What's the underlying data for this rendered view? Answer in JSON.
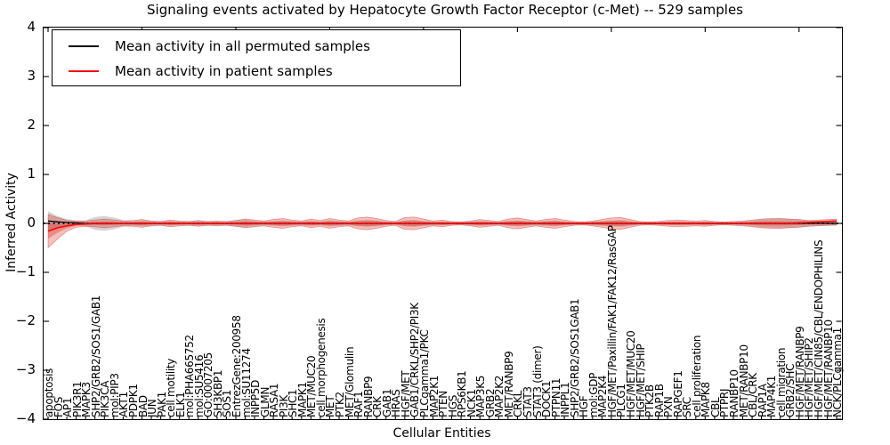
{
  "chart_data": {
    "type": "line",
    "title": "Signaling events activated by Hepatocyte Growth Factor Receptor (c-Met) -- 529 samples",
    "xlabel": "Cellular Entities",
    "ylabel": "Inferred Activity",
    "ylim": [
      -4,
      4
    ],
    "yticks": [
      4,
      3,
      2,
      1,
      0,
      -1,
      -2,
      -3,
      -4
    ],
    "grid": false,
    "legend_position": "upper left",
    "legend": [
      {
        "label": "Mean activity in all permuted samples",
        "color": "#000000"
      },
      {
        "label": "Mean activity in patient samples",
        "color": "#ee1111"
      }
    ],
    "band_color": "#dd2c22",
    "grey_band_color": "#aaaaaa",
    "categories": [
      "apoptosis",
      "FOS",
      "AP1",
      "PIK3R1",
      "MAPK3",
      "SHP2/GRB2/SOS1/GAB1",
      "PIK3CA",
      "mol:PIP3",
      "AKT1",
      "PDPK1",
      "BAD",
      "JUN",
      "PAK1",
      "cell motility",
      "ELK1",
      "mol:PHA665752",
      "mol:SU5416",
      "GO:0007205",
      "SH3KBP1",
      "SOS1",
      "EntrezGene:200958",
      "mol:SU11274",
      "INPP5D",
      "GLMN",
      "RASA1",
      "PI3K",
      "SHC1",
      "MAPK1",
      "MET/MUC20",
      "cell morphogenesis",
      "MET",
      "PTK2",
      "MET/Glomulin",
      "RAF1",
      "RANBP9",
      "CRK",
      "GAB1",
      "HRAS",
      "HGF/MET",
      "GAB1/CRKL/SHP2/PI3K",
      "PLCgamma1/PKC",
      "MAP2K1",
      "PTEN",
      "HGS",
      "RPS6KB1",
      "NCK1",
      "MAP3K5",
      "GRB2",
      "MAP2K2",
      "MET/RANBP9",
      "CRKL",
      "STAT3",
      "STAT3 (dimer)",
      "DOCK1",
      "PTPN11",
      "INPPL1",
      "SHP2/GRB2/SOS1GAB1",
      "HGF",
      "mol:GDP",
      "MAP2K4",
      "HGF/MET/Paxillin/FAK1/FAK12/RasGAP",
      "PLCG1",
      "HGF/MET/MUC20",
      "HGF/MET/SHIP",
      "PTK2B",
      "RAP1B",
      "PXN",
      "RAPGEF1",
      "SRC",
      "cell proliferation",
      "MAPK8",
      "CBL",
      "PTPRJ",
      "RANBP10",
      "MET/RANBP10",
      "CBL/CRK",
      "RAP1A",
      "MAP4K1",
      "cell migration",
      "GRB2/SHC",
      "HGF/MET/RANBP9",
      "HGF/MET/SHIP2",
      "HGF/MET/CIN85/CBL/ENDOPHILINS",
      "HGF/MET/RANBP10",
      "NCK/PLCgamma1"
    ],
    "series": [
      {
        "name": "Mean activity in all permuted samples",
        "values": [
          0.05,
          0.03,
          0.02,
          0.01,
          0,
          0,
          0,
          0,
          0,
          0,
          0,
          0,
          0,
          0,
          0,
          0,
          0,
          0,
          0,
          0,
          0,
          0,
          0,
          0,
          0,
          0,
          0,
          0,
          0,
          0,
          0,
          0,
          0,
          0,
          0,
          0,
          0,
          0,
          0,
          0,
          0,
          0,
          0,
          0,
          0,
          0,
          0,
          0,
          0,
          0,
          0,
          0,
          0,
          0,
          0,
          0,
          0,
          0,
          0,
          0,
          0,
          0,
          0,
          0,
          0,
          0,
          0,
          0,
          0,
          0,
          0,
          0,
          0,
          0,
          0,
          0,
          0,
          0,
          0,
          0,
          0,
          0,
          0,
          0,
          0
        ],
        "band_halfwidth": [
          0.2,
          0.12,
          0.07,
          0.05,
          0.06,
          0.13,
          0.15,
          0.12,
          0.07,
          0.05,
          0.06,
          0.05,
          0.04,
          0.05,
          0.04,
          0.04,
          0.05,
          0.04,
          0.04,
          0.04,
          0.07,
          0.08,
          0.06,
          0.04,
          0.05,
          0.06,
          0.05,
          0.04,
          0.05,
          0.04,
          0.06,
          0.05,
          0.04,
          0.06,
          0.07,
          0.06,
          0.04,
          0.03,
          0.06,
          0.07,
          0.05,
          0.04,
          0.04,
          0.03,
          0.03,
          0.04,
          0.05,
          0.04,
          0.03,
          0.05,
          0.06,
          0.05,
          0.04,
          0.05,
          0.06,
          0.04,
          0.03,
          0.03,
          0.04,
          0.05,
          0.06,
          0.07,
          0.05,
          0.03,
          0.03,
          0.03,
          0.04,
          0.04,
          0.04,
          0.03,
          0.04,
          0.03,
          0.03,
          0.03,
          0.04,
          0.06,
          0.08,
          0.09,
          0.1,
          0.09,
          0.08,
          0.06,
          0.05,
          0.05,
          0.05
        ]
      },
      {
        "name": "Mean activity in patient samples",
        "values": [
          -0.16,
          -0.09,
          -0.05,
          -0.02,
          -0.01,
          0,
          0,
          0,
          0,
          0,
          0,
          0,
          0,
          0,
          0,
          0,
          0,
          0,
          0,
          0,
          0,
          0,
          0,
          0,
          0,
          0,
          0,
          0,
          0,
          0,
          0,
          0,
          0,
          0,
          0,
          0,
          0,
          0,
          0,
          0,
          0,
          0,
          0,
          0,
          0,
          0,
          0,
          0,
          0,
          0,
          0,
          0,
          0,
          0,
          0,
          0,
          0,
          0,
          0,
          0,
          0,
          0,
          0,
          0,
          0,
          0,
          0,
          0,
          0,
          0,
          0,
          0,
          0,
          0,
          0,
          0,
          0,
          0,
          0,
          0,
          0.01,
          0.02,
          0.03,
          0.04,
          0.05
        ],
        "band_top": [
          0.18,
          0.12,
          0.06,
          0.05,
          0.05,
          0.07,
          0.09,
          0.07,
          0.05,
          0.06,
          0.08,
          0.05,
          0.04,
          0.07,
          0.05,
          0.04,
          0.06,
          0.04,
          0.05,
          0.04,
          0.06,
          0.09,
          0.07,
          0.05,
          0.08,
          0.1,
          0.07,
          0.05,
          0.09,
          0.06,
          0.1,
          0.07,
          0.05,
          0.11,
          0.13,
          0.1,
          0.06,
          0.04,
          0.12,
          0.13,
          0.09,
          0.05,
          0.07,
          0.04,
          0.03,
          0.05,
          0.08,
          0.06,
          0.04,
          0.09,
          0.11,
          0.08,
          0.05,
          0.08,
          0.1,
          0.07,
          0.04,
          0.03,
          0.05,
          0.08,
          0.11,
          0.12,
          0.08,
          0.04,
          0.03,
          0.04,
          0.06,
          0.07,
          0.06,
          0.05,
          0.06,
          0.04,
          0.03,
          0.04,
          0.05,
          0.07,
          0.09,
          0.1,
          0.1,
          0.09,
          0.08,
          0.06,
          0.07,
          0.08,
          0.09
        ],
        "band_bottom": [
          -0.5,
          -0.32,
          -0.16,
          -0.08,
          -0.06,
          -0.07,
          -0.09,
          -0.07,
          -0.05,
          -0.06,
          -0.08,
          -0.05,
          -0.04,
          -0.07,
          -0.05,
          -0.04,
          -0.06,
          -0.04,
          -0.05,
          -0.04,
          -0.06,
          -0.09,
          -0.07,
          -0.05,
          -0.08,
          -0.1,
          -0.07,
          -0.05,
          -0.09,
          -0.06,
          -0.1,
          -0.07,
          -0.05,
          -0.11,
          -0.13,
          -0.1,
          -0.06,
          -0.04,
          -0.12,
          -0.13,
          -0.09,
          -0.05,
          -0.07,
          -0.04,
          -0.03,
          -0.05,
          -0.08,
          -0.06,
          -0.04,
          -0.09,
          -0.11,
          -0.08,
          -0.05,
          -0.08,
          -0.1,
          -0.07,
          -0.04,
          -0.03,
          -0.05,
          -0.08,
          -0.11,
          -0.12,
          -0.08,
          -0.04,
          -0.03,
          -0.04,
          -0.06,
          -0.07,
          -0.06,
          -0.05,
          -0.06,
          -0.04,
          -0.03,
          -0.04,
          -0.05,
          -0.07,
          -0.09,
          -0.1,
          -0.1,
          -0.09,
          -0.08,
          -0.06,
          -0.05,
          -0.04,
          -0.03
        ]
      }
    ],
    "zero_reference_line": 0
  }
}
